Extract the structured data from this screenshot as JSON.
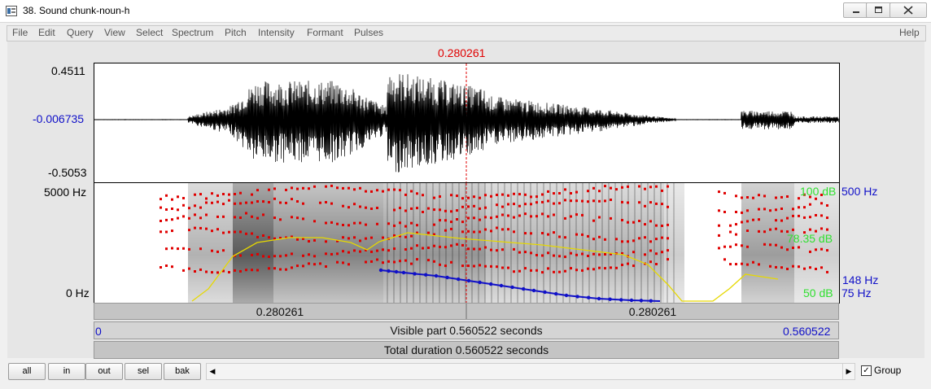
{
  "window": {
    "title": "38. Sound chunk-noun-h"
  },
  "menu": [
    "File",
    "Edit",
    "Query",
    "View",
    "Select",
    "Spectrum",
    "Pitch",
    "Intensity",
    "Formant",
    "Pulses"
  ],
  "help_label": "Help",
  "cursor_time": "0.280261",
  "waveform": {
    "top": "0.4511",
    "center": "-0.006735",
    "bottom": "-0.5053"
  },
  "spectrogram": {
    "freq_top": "5000 Hz",
    "freq_bottom": "0 Hz",
    "intensity_top": "100 dB",
    "intensity_mid": "78.35 dB",
    "intensity_bottom": "50 dB",
    "pitch_top": "500 Hz",
    "pitch_cursor": "148 Hz",
    "pitch_bottom": "75 Hz"
  },
  "time_bar": {
    "left_value": "0.280261",
    "right_value": "0.280261"
  },
  "visible": {
    "start": "0",
    "label": "Visible part 0.560522 seconds",
    "end": "0.560522"
  },
  "total": {
    "label": "Total duration 0.560522 seconds"
  },
  "buttons": [
    "all",
    "in",
    "out",
    "sel",
    "bak"
  ],
  "group_label": "Group",
  "colors": {
    "cursor": "#e00000",
    "formant": "#e00000",
    "pitch": "#1010c8",
    "intensity": "#e6d800",
    "axis_blue": "#1010c8",
    "intensity_text": "#30e030"
  }
}
